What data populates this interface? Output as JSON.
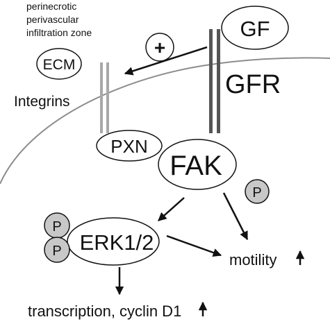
{
  "labels": {
    "zone_line1": "perinecrotic",
    "zone_line2": "perivascular",
    "zone_line3": "infiltration zone",
    "ecm": "ECM",
    "gf": "GF",
    "gfr": "GFR",
    "integrins": "Integrins",
    "pxn": "PXN",
    "fak": "FAK",
    "erk": "ERK1/2",
    "motility": "motility",
    "transcription": "transcription, cyclin D1",
    "plus": "+",
    "phospho": "P"
  },
  "colors": {
    "membrane": "#8c8c8c",
    "integrin_bar": "#a8a8a8",
    "gfr_bar": "#555555",
    "phospho_fill": "#c8c8c8",
    "ink": "#111111"
  }
}
